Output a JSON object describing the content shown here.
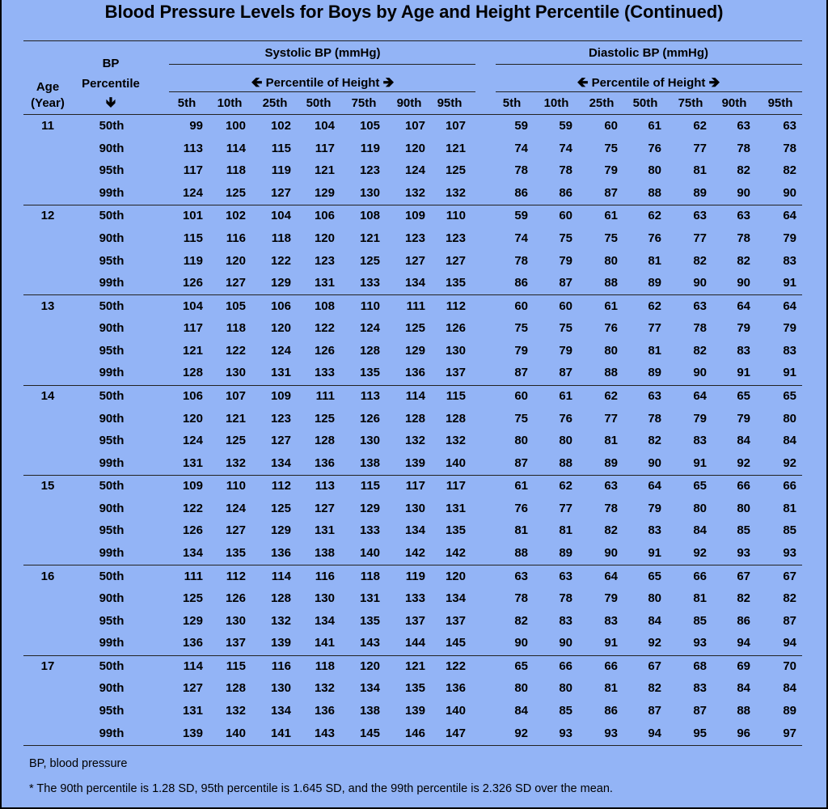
{
  "title": "Blood Pressure Levels for Boys by Age and Height Percentile (Continued)",
  "header": {
    "age_line1": "Age",
    "age_line2": "(Year)",
    "bp_line1": "BP",
    "bp_line2": "Percentile",
    "bp_arrow": "🡻",
    "systolic": "Systolic BP (mmHg)",
    "diastolic": "Diastolic BP (mmHg)",
    "height_percentile": "Percentile of Height",
    "arrow_left": "🡸",
    "arrow_right": "🡺",
    "height_cols": [
      "5th",
      "10th",
      "25th",
      "50th",
      "75th",
      "90th",
      "95th"
    ]
  },
  "groups": [
    {
      "age": "11",
      "rows": [
        {
          "bp": "50th",
          "sys": [
            99,
            100,
            102,
            104,
            105,
            107,
            107
          ],
          "dia": [
            59,
            59,
            60,
            61,
            62,
            63,
            63
          ]
        },
        {
          "bp": "90th",
          "sys": [
            113,
            114,
            115,
            117,
            119,
            120,
            121
          ],
          "dia": [
            74,
            74,
            75,
            76,
            77,
            78,
            78
          ]
        },
        {
          "bp": "95th",
          "sys": [
            117,
            118,
            119,
            121,
            123,
            124,
            125
          ],
          "dia": [
            78,
            78,
            79,
            80,
            81,
            82,
            82
          ]
        },
        {
          "bp": "99th",
          "sys": [
            124,
            125,
            127,
            129,
            130,
            132,
            132
          ],
          "dia": [
            86,
            86,
            87,
            88,
            89,
            90,
            90
          ]
        }
      ]
    },
    {
      "age": "12",
      "rows": [
        {
          "bp": "50th",
          "sys": [
            101,
            102,
            104,
            106,
            108,
            109,
            110
          ],
          "dia": [
            59,
            60,
            61,
            62,
            63,
            63,
            64
          ]
        },
        {
          "bp": "90th",
          "sys": [
            115,
            116,
            118,
            120,
            121,
            123,
            123
          ],
          "dia": [
            74,
            75,
            75,
            76,
            77,
            78,
            79
          ]
        },
        {
          "bp": "95th",
          "sys": [
            119,
            120,
            122,
            123,
            125,
            127,
            127
          ],
          "dia": [
            78,
            79,
            80,
            81,
            82,
            82,
            83
          ]
        },
        {
          "bp": "99th",
          "sys": [
            126,
            127,
            129,
            131,
            133,
            134,
            135
          ],
          "dia": [
            86,
            87,
            88,
            89,
            90,
            90,
            91
          ]
        }
      ]
    },
    {
      "age": "13",
      "rows": [
        {
          "bp": "50th",
          "sys": [
            104,
            105,
            106,
            108,
            110,
            111,
            112
          ],
          "dia": [
            60,
            60,
            61,
            62,
            63,
            64,
            64
          ]
        },
        {
          "bp": "90th",
          "sys": [
            117,
            118,
            120,
            122,
            124,
            125,
            126
          ],
          "dia": [
            75,
            75,
            76,
            77,
            78,
            79,
            79
          ]
        },
        {
          "bp": "95th",
          "sys": [
            121,
            122,
            124,
            126,
            128,
            129,
            130
          ],
          "dia": [
            79,
            79,
            80,
            81,
            82,
            83,
            83
          ]
        },
        {
          "bp": "99th",
          "sys": [
            128,
            130,
            131,
            133,
            135,
            136,
            137
          ],
          "dia": [
            87,
            87,
            88,
            89,
            90,
            91,
            91
          ]
        }
      ]
    },
    {
      "age": "14",
      "rows": [
        {
          "bp": "50th",
          "sys": [
            106,
            107,
            109,
            111,
            113,
            114,
            115
          ],
          "dia": [
            60,
            61,
            62,
            63,
            64,
            65,
            65
          ]
        },
        {
          "bp": "90th",
          "sys": [
            120,
            121,
            123,
            125,
            126,
            128,
            128
          ],
          "dia": [
            75,
            76,
            77,
            78,
            79,
            79,
            80
          ]
        },
        {
          "bp": "95th",
          "sys": [
            124,
            125,
            127,
            128,
            130,
            132,
            132
          ],
          "dia": [
            80,
            80,
            81,
            82,
            83,
            84,
            84
          ]
        },
        {
          "bp": "99th",
          "sys": [
            131,
            132,
            134,
            136,
            138,
            139,
            140
          ],
          "dia": [
            87,
            88,
            89,
            90,
            91,
            92,
            92
          ]
        }
      ]
    },
    {
      "age": "15",
      "rows": [
        {
          "bp": "50th",
          "sys": [
            109,
            110,
            112,
            113,
            115,
            117,
            117
          ],
          "dia": [
            61,
            62,
            63,
            64,
            65,
            66,
            66
          ]
        },
        {
          "bp": "90th",
          "sys": [
            122,
            124,
            125,
            127,
            129,
            130,
            131
          ],
          "dia": [
            76,
            77,
            78,
            79,
            80,
            80,
            81
          ]
        },
        {
          "bp": "95th",
          "sys": [
            126,
            127,
            129,
            131,
            133,
            134,
            135
          ],
          "dia": [
            81,
            81,
            82,
            83,
            84,
            85,
            85
          ]
        },
        {
          "bp": "99th",
          "sys": [
            134,
            135,
            136,
            138,
            140,
            142,
            142
          ],
          "dia": [
            88,
            89,
            90,
            91,
            92,
            93,
            93
          ]
        }
      ]
    },
    {
      "age": "16",
      "rows": [
        {
          "bp": "50th",
          "sys": [
            111,
            112,
            114,
            116,
            118,
            119,
            120
          ],
          "dia": [
            63,
            63,
            64,
            65,
            66,
            67,
            67
          ]
        },
        {
          "bp": "90th",
          "sys": [
            125,
            126,
            128,
            130,
            131,
            133,
            134
          ],
          "dia": [
            78,
            78,
            79,
            80,
            81,
            82,
            82
          ]
        },
        {
          "bp": "95th",
          "sys": [
            129,
            130,
            132,
            134,
            135,
            137,
            137
          ],
          "dia": [
            82,
            83,
            83,
            84,
            85,
            86,
            87
          ]
        },
        {
          "bp": "99th",
          "sys": [
            136,
            137,
            139,
            141,
            143,
            144,
            145
          ],
          "dia": [
            90,
            90,
            91,
            92,
            93,
            94,
            94
          ]
        }
      ]
    },
    {
      "age": "17",
      "rows": [
        {
          "bp": "50th",
          "sys": [
            114,
            115,
            116,
            118,
            120,
            121,
            122
          ],
          "dia": [
            65,
            66,
            66,
            67,
            68,
            69,
            70
          ]
        },
        {
          "bp": "90th",
          "sys": [
            127,
            128,
            130,
            132,
            134,
            135,
            136
          ],
          "dia": [
            80,
            80,
            81,
            82,
            83,
            84,
            84
          ]
        },
        {
          "bp": "95th",
          "sys": [
            131,
            132,
            134,
            136,
            138,
            139,
            140
          ],
          "dia": [
            84,
            85,
            86,
            87,
            87,
            88,
            89
          ]
        },
        {
          "bp": "99th",
          "sys": [
            139,
            140,
            141,
            143,
            145,
            146,
            147
          ],
          "dia": [
            92,
            93,
            93,
            94,
            95,
            96,
            97
          ]
        }
      ]
    }
  ],
  "footnotes": {
    "abbrev": "BP, blood pressure",
    "note": "* The 90th percentile is 1.28 SD, 95th percentile is 1.645 SD, and the 99th percentile is 2.326 SD over the mean."
  },
  "colors": {
    "background": "#93b4f6",
    "border": "#000000"
  }
}
